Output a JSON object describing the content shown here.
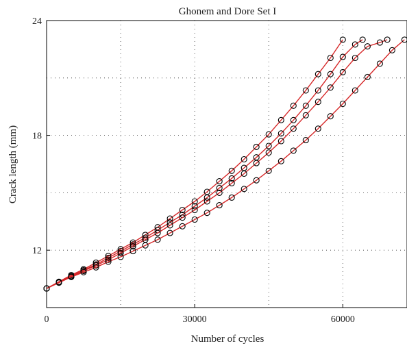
{
  "chart_data": {
    "type": "scatter",
    "title": "Ghonem and Dore Set I",
    "xlabel": "Number of cycles",
    "ylabel": "Crack length (mm)",
    "xlim": [
      0,
      73000
    ],
    "ylim": [
      9,
      24
    ],
    "x_ticks": [
      0,
      30000,
      60000
    ],
    "y_ticks": [
      12,
      18,
      24
    ],
    "x_tick_labels": [
      "0",
      "30000",
      "60000"
    ],
    "y_tick_labels": [
      "12",
      "18",
      "24"
    ],
    "grid": true,
    "legend": "none",
    "marker_color": "#000000",
    "line_color": "#d62728",
    "series": [
      {
        "x": [
          0,
          2500,
          5000,
          7500,
          10000,
          12500,
          15000,
          17500,
          20000,
          22500,
          25000,
          27500,
          30000,
          32500,
          35000,
          37500,
          40000,
          42500,
          45000,
          47500,
          50000,
          52500,
          55000,
          57500,
          60000
        ],
        "y": [
          10.0,
          10.35,
          10.7,
          11.0,
          11.35,
          11.7,
          12.05,
          12.4,
          12.8,
          13.2,
          13.65,
          14.1,
          14.55,
          15.05,
          15.6,
          16.15,
          16.75,
          17.4,
          18.05,
          18.8,
          19.55,
          20.35,
          21.2,
          22.05,
          23.0
        ]
      },
      {
        "x": [
          0,
          2500,
          5000,
          7500,
          10000,
          12500,
          15000,
          17500,
          20000,
          22500,
          25000,
          27500,
          30000,
          32500,
          35000,
          37500,
          40000,
          42500,
          45000,
          47500,
          50000,
          52500,
          55000,
          57500,
          60000,
          62500,
          64000
        ],
        "y": [
          10.0,
          10.33,
          10.65,
          10.95,
          11.25,
          11.6,
          11.95,
          12.3,
          12.65,
          13.05,
          13.45,
          13.85,
          14.3,
          14.75,
          15.25,
          15.75,
          16.3,
          16.85,
          17.45,
          18.1,
          18.8,
          19.55,
          20.35,
          21.2,
          22.1,
          22.75,
          23.0
        ]
      },
      {
        "x": [
          0,
          2500,
          5000,
          7500,
          10000,
          12500,
          15000,
          17500,
          20000,
          22500,
          25000,
          27500,
          30000,
          32500,
          35000,
          37500,
          40000,
          42500,
          45000,
          47500,
          50000,
          52500,
          55000,
          57500,
          60000,
          62500,
          65000,
          67500,
          69000
        ],
        "y": [
          10.0,
          10.32,
          10.62,
          10.92,
          11.2,
          11.5,
          11.85,
          12.2,
          12.55,
          12.9,
          13.3,
          13.7,
          14.1,
          14.55,
          15.0,
          15.5,
          16.0,
          16.55,
          17.1,
          17.7,
          18.35,
          19.05,
          19.75,
          20.5,
          21.3,
          22.05,
          22.65,
          22.85,
          23.0
        ]
      },
      {
        "x": [
          0,
          2500,
          5000,
          7500,
          10000,
          12500,
          15000,
          17500,
          20000,
          22500,
          25000,
          27500,
          30000,
          32500,
          35000,
          37500,
          40000,
          42500,
          45000,
          47500,
          50000,
          52500,
          55000,
          57500,
          60000,
          62500,
          65000,
          67500,
          70000,
          72500
        ],
        "y": [
          10.0,
          10.3,
          10.6,
          10.85,
          11.1,
          11.4,
          11.65,
          11.95,
          12.25,
          12.55,
          12.9,
          13.25,
          13.6,
          13.95,
          14.35,
          14.75,
          15.2,
          15.65,
          16.15,
          16.65,
          17.2,
          17.75,
          18.35,
          19.0,
          19.65,
          20.35,
          21.05,
          21.75,
          22.45,
          23.0
        ]
      }
    ]
  }
}
